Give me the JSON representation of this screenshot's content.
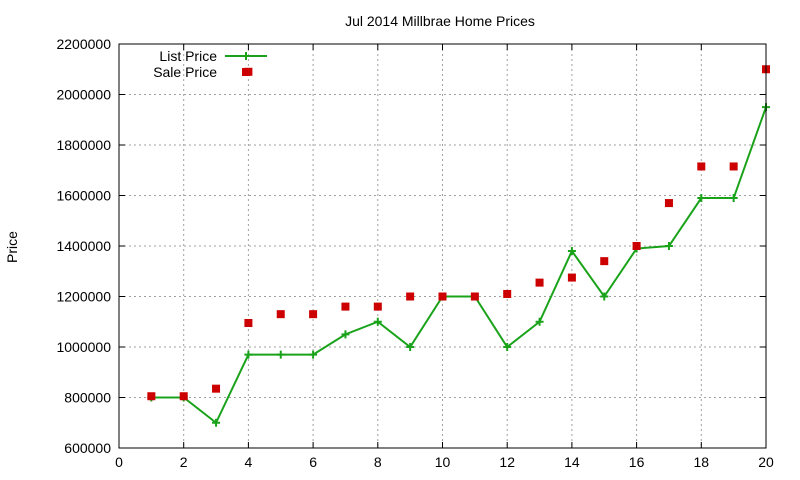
{
  "chart_data": {
    "type": "line",
    "title": "Jul 2014 Millbrae Home Prices",
    "xlabel": "",
    "ylabel": "Price",
    "xlim": [
      0,
      20
    ],
    "ylim": [
      600000,
      2200000
    ],
    "xticks": [
      0,
      2,
      4,
      6,
      8,
      10,
      12,
      14,
      16,
      18,
      20
    ],
    "yticks": [
      600000,
      800000,
      1000000,
      1200000,
      1400000,
      1600000,
      1800000,
      2000000,
      2200000
    ],
    "grid": true,
    "legend_position": "top-left",
    "series": [
      {
        "name": "List Price",
        "style": "line with plus markers",
        "color": "#1aa31a",
        "x": [
          1,
          2,
          3,
          4,
          5,
          6,
          7,
          8,
          9,
          10,
          11,
          12,
          13,
          14,
          15,
          16,
          17,
          18,
          19,
          20
        ],
        "y": [
          800000,
          800000,
          700000,
          970000,
          970000,
          970000,
          1050000,
          1100000,
          1000000,
          1200000,
          1200000,
          1000000,
          1100000,
          1380000,
          1200000,
          1390000,
          1400000,
          1590000,
          1590000,
          1950000
        ]
      },
      {
        "name": "Sale Price",
        "style": "square markers",
        "color": "#cc0000",
        "x": [
          1,
          2,
          3,
          4,
          4,
          5,
          6,
          7,
          8,
          9,
          10,
          11,
          12,
          13,
          14,
          15,
          16,
          17,
          18,
          19,
          20
        ],
        "y": [
          805000,
          805000,
          835000,
          2090000,
          1095000,
          1130000,
          1130000,
          1160000,
          1160000,
          1200000,
          1200000,
          1200000,
          1210000,
          1255000,
          1275000,
          1340000,
          1400000,
          1570000,
          1715000,
          1715000,
          2100000
        ]
      }
    ]
  }
}
